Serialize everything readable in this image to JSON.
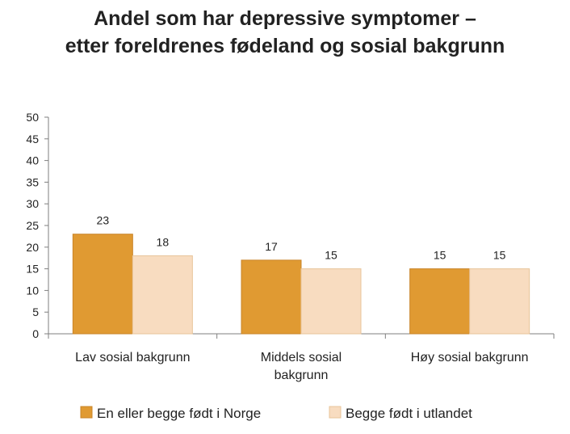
{
  "chart_data": {
    "type": "bar",
    "title_lines": [
      "Andel som har depressive symptomer –",
      "etter foreldrenes fødeland og sosial bakgrunn"
    ],
    "categories": [
      [
        "Lav sosial bakgrunn"
      ],
      [
        "Middels sosial",
        "bakgrunn"
      ],
      [
        "Høy sosial bakgrunn"
      ]
    ],
    "series": [
      {
        "name": "En eller begge født i Norge",
        "values": [
          23,
          17,
          15
        ],
        "color": "#e09a32"
      },
      {
        "name": "Begge født i utlandet",
        "values": [
          18,
          15,
          15
        ],
        "color": "#f8dcc0"
      }
    ],
    "yticks": [
      "0",
      "5",
      "10",
      "15",
      "20",
      "25",
      "30",
      "35",
      "40",
      "45",
      "50"
    ],
    "ylim": [
      0,
      50
    ],
    "grid": false,
    "legend_position": "bottom"
  }
}
